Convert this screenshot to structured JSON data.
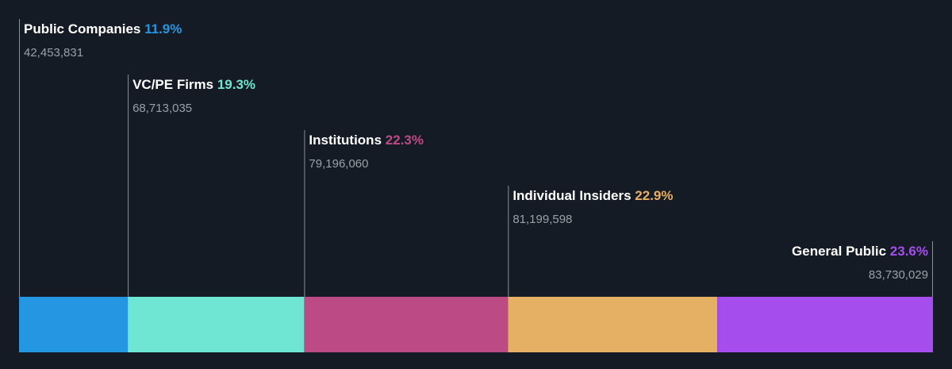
{
  "chart_data": {
    "type": "bar",
    "orientation": "horizontal-stacked",
    "categories": [
      "Public Companies",
      "VC/PE Firms",
      "Institutions",
      "Individual Insiders",
      "General Public"
    ],
    "values": [
      11.9,
      19.3,
      22.3,
      22.9,
      23.6
    ],
    "value_labels": [
      "11.9%",
      "19.3%",
      "22.3%",
      "22.9%",
      "23.6%"
    ],
    "shares": [
      "42,453,831",
      "68,713,035",
      "79,196,060",
      "81,199,598",
      "83,730,029"
    ],
    "colors": [
      "#2596e1",
      "#6fe6d4",
      "#bc4a85",
      "#e6b064",
      "#a54ded"
    ],
    "background": "#151b24",
    "grid": false,
    "legend": "none"
  }
}
